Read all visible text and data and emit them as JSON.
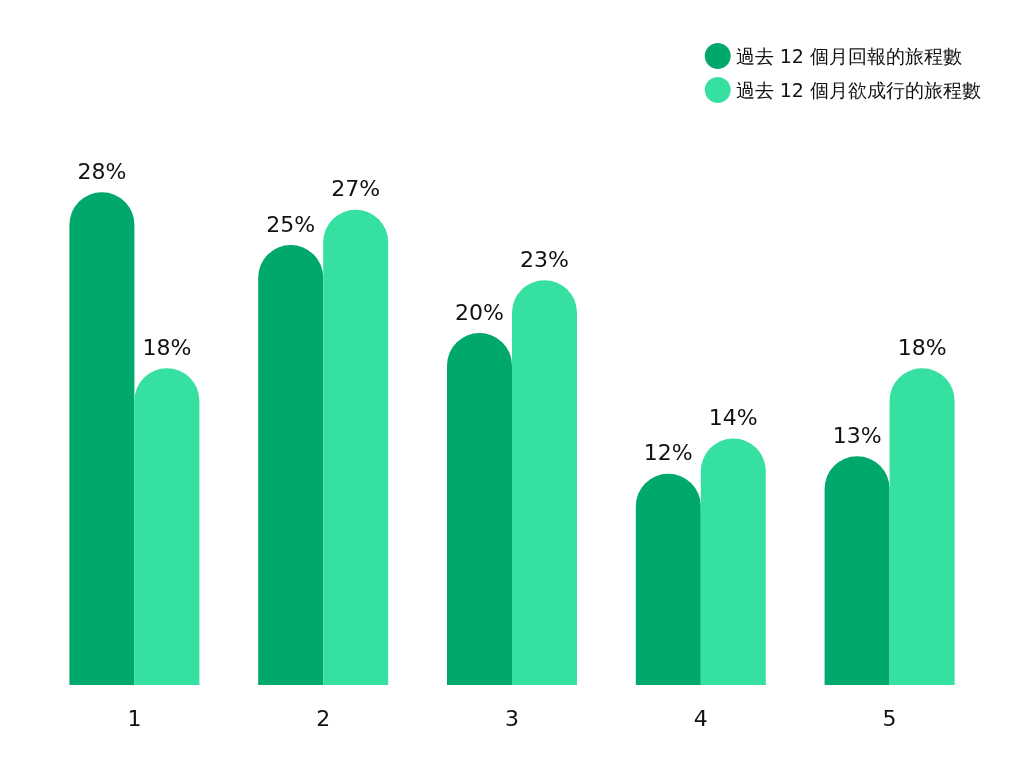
{
  "chart_data": {
    "type": "bar",
    "categories": [
      "1",
      "2",
      "3",
      "4",
      "5"
    ],
    "series": [
      {
        "name": "過去 12 個月回報的旅程數",
        "color": "#00a86b",
        "values": [
          28,
          25,
          20,
          12,
          13
        ],
        "value_labels": [
          "28%",
          "25%",
          "20%",
          "12%",
          "13%"
        ]
      },
      {
        "name": "過去 12 個月欲成行的旅程數",
        "color": "#36e0a0",
        "values": [
          18,
          27,
          23,
          14,
          18
        ],
        "value_labels": [
          "18%",
          "27%",
          "23%",
          "14%",
          "18%"
        ]
      }
    ],
    "legend": "top right",
    "grid": false,
    "tick_labels": "x"
  }
}
